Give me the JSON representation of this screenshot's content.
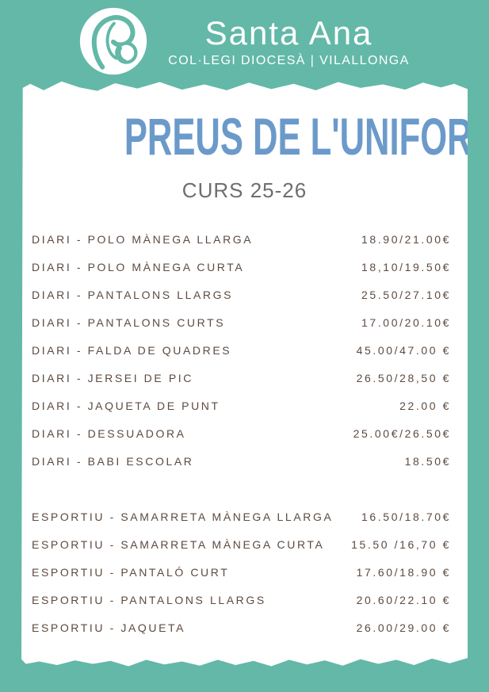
{
  "header": {
    "school_name": "Santa Ana",
    "school_subtitle": "COL·LEGI DIOCESÀ | VILALLONGA"
  },
  "poster": {
    "title": "PREUS DE L'UNIFORME",
    "subtitle": "CURS 25-26"
  },
  "icons": {
    "logo": "mother-and-child-logo"
  },
  "colors": {
    "background_teal": "#63b8a8",
    "title_blue": "#6b9aca",
    "item_text": "#5d4b40",
    "subtitle_gray": "#6e6e6e",
    "paper_white": "#ffffff"
  },
  "price_list": {
    "sections": [
      {
        "name": "diari",
        "items": [
          {
            "label": "DIARI - POLO MÀNEGA LLARGA",
            "price": "18.90/21.00€"
          },
          {
            "label": "DIARI - POLO MÀNEGA CURTA",
            "price": "18,10/19.50€"
          },
          {
            "label": "DIARI - PANTALONS LLARGS",
            "price": "25.50/27.10€"
          },
          {
            "label": "DIARI - PANTALONS CURTS",
            "price": "17.00/20.10€"
          },
          {
            "label": "DIARI - FALDA DE QUADRES",
            "price": "45.00/47.00 €"
          },
          {
            "label": "DIARI - JERSEI DE PIC",
            "price": "26.50/28,50 €"
          },
          {
            "label": "DIARI - JAQUETA DE PUNT",
            "price": "22.00 €"
          },
          {
            "label": "DIARI - DESSUADORA",
            "price": "25.00€/26.50€"
          },
          {
            "label": "DIARI - BABI ESCOLAR",
            "price": "18.50€"
          }
        ]
      },
      {
        "name": "esportiu",
        "items": [
          {
            "label": "ESPORTIU - SAMARRETA MÀNEGA LLARGA",
            "price": "16.50/18.70€"
          },
          {
            "label": "ESPORTIU - SAMARRETA MÀNEGA CURTA",
            "price": "15.50 /16,70 €"
          },
          {
            "label": "ESPORTIU - PANTALÓ CURT",
            "price": "17.60/18.90 €"
          },
          {
            "label": "ESPORTIU - PANTALONS LLARGS",
            "price": "20.60/22.10 €"
          },
          {
            "label": "ESPORTIU - JAQUETA",
            "price": "26.00/29.00 €"
          }
        ]
      }
    ]
  }
}
